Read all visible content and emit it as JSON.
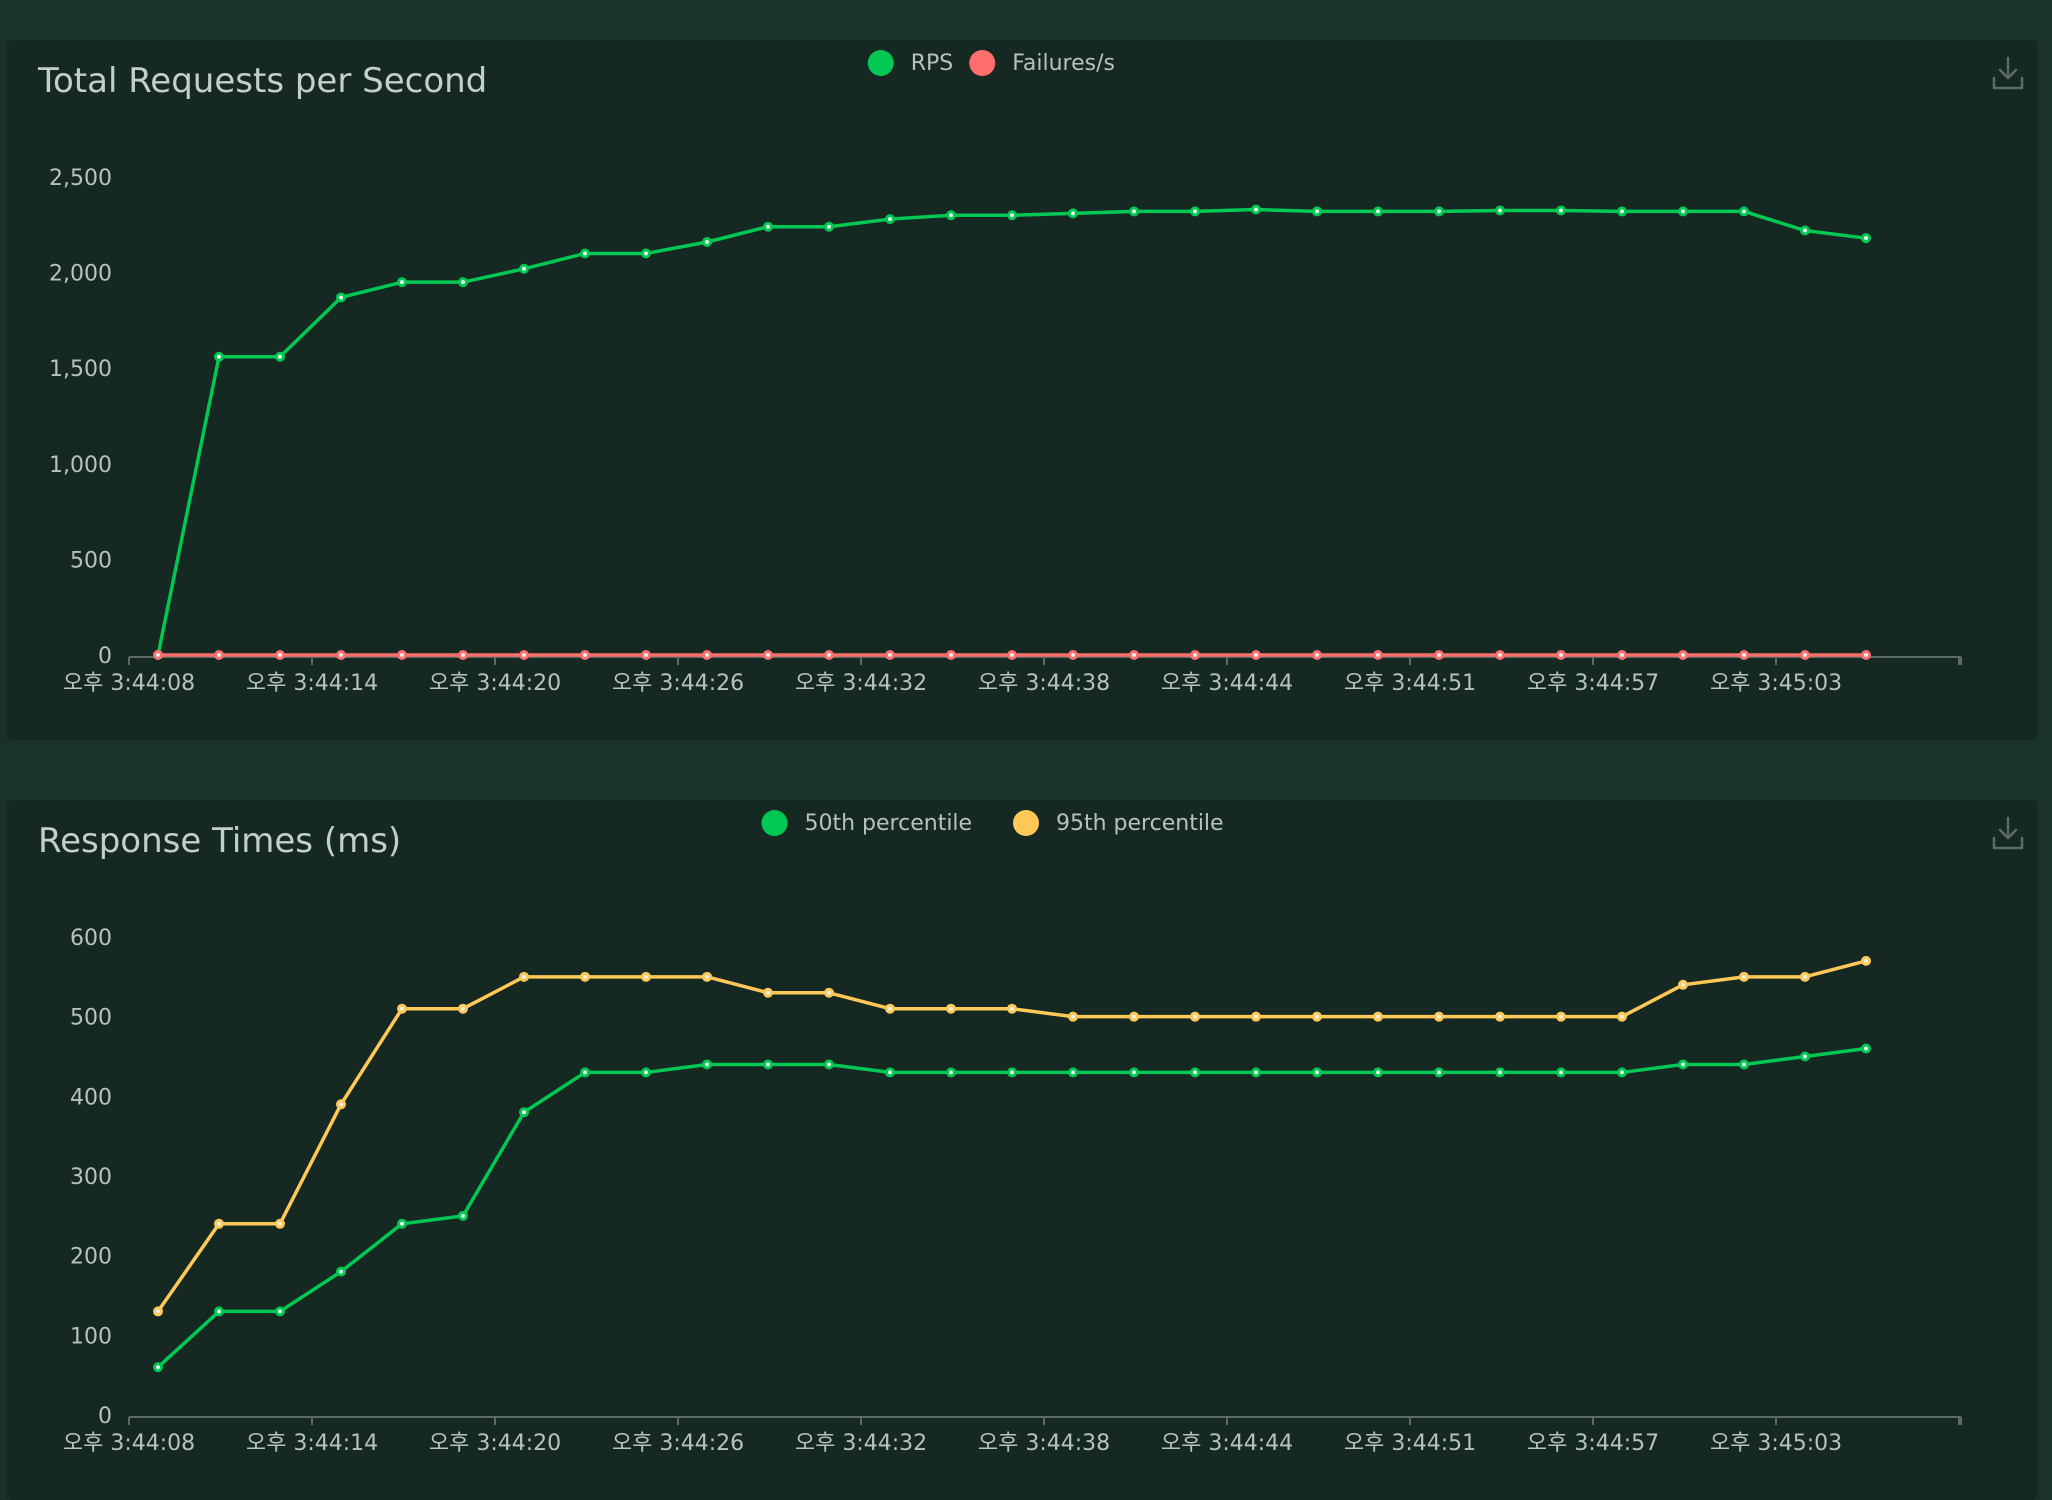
{
  "chart_data": [
    {
      "type": "line",
      "title": "Total Requests per Second",
      "x": [
        "오후 3:44:08",
        "오후 3:44:10",
        "오후 3:44:12",
        "오후 3:44:14",
        "오후 3:44:16",
        "오후 3:44:18",
        "오후 3:44:20",
        "오후 3:44:22",
        "오후 3:44:24",
        "오후 3:44:26",
        "오후 3:44:28",
        "오후 3:44:30",
        "오후 3:44:32",
        "오후 3:44:34",
        "오후 3:44:36",
        "오후 3:44:38",
        "오후 3:44:40",
        "오후 3:44:42",
        "오후 3:44:44",
        "오후 3:44:46",
        "오후 3:44:49",
        "오후 3:44:51",
        "오후 3:44:53",
        "오후 3:44:55",
        "오후 3:44:57",
        "오후 3:44:59",
        "오후 3:45:01",
        "오후 3:45:03",
        "오후 3:45:05"
      ],
      "xticks": [
        "오후 3:44:08",
        "오후 3:44:14",
        "오후 3:44:20",
        "오후 3:44:26",
        "오후 3:44:32",
        "오후 3:44:38",
        "오후 3:44:44",
        "오후 3:44:51",
        "오후 3:44:57",
        "오후 3:45:03"
      ],
      "yticks": [
        "0",
        "500",
        "1,000",
        "1,500",
        "2,000",
        "2,500"
      ],
      "ylim": [
        0,
        2700
      ],
      "grid": false,
      "legend": "top-center",
      "series": [
        {
          "name": "RPS",
          "color": "#00c853",
          "values": [
            0,
            1560,
            1560,
            1870,
            1950,
            1950,
            2020,
            2100,
            2100,
            2160,
            2240,
            2240,
            2280,
            2300,
            2300,
            2310,
            2320,
            2320,
            2330,
            2320,
            2320,
            2320,
            2325,
            2325,
            2320,
            2320,
            2320,
            2220,
            2180
          ]
        },
        {
          "name": "Failures/s",
          "color": "#ff6d6d",
          "values": [
            0,
            0,
            0,
            0,
            0,
            0,
            0,
            0,
            0,
            0,
            0,
            0,
            0,
            0,
            0,
            0,
            0,
            0,
            0,
            0,
            0,
            0,
            0,
            0,
            0,
            0,
            0,
            0,
            0
          ]
        }
      ]
    },
    {
      "type": "line",
      "title": "Response Times (ms)",
      "x": [
        "오후 3:44:08",
        "오후 3:44:10",
        "오후 3:44:12",
        "오후 3:44:14",
        "오후 3:44:16",
        "오후 3:44:18",
        "오후 3:44:20",
        "오후 3:44:22",
        "오후 3:44:24",
        "오후 3:44:26",
        "오후 3:44:28",
        "오후 3:44:30",
        "오후 3:44:32",
        "오후 3:44:34",
        "오후 3:44:36",
        "오후 3:44:38",
        "오후 3:44:40",
        "오후 3:44:42",
        "오후 3:44:44",
        "오후 3:44:46",
        "오후 3:44:49",
        "오후 3:44:51",
        "오후 3:44:53",
        "오후 3:44:55",
        "오후 3:44:57",
        "오후 3:44:59",
        "오후 3:45:01",
        "오후 3:45:03",
        "오후 3:45:05"
      ],
      "xticks": [
        "오후 3:44:08",
        "오후 3:44:14",
        "오후 3:44:20",
        "오후 3:44:26",
        "오후 3:44:32",
        "오후 3:44:38",
        "오후 3:44:44",
        "오후 3:44:51",
        "오후 3:44:57",
        "오후 3:45:03"
      ],
      "yticks": [
        "0",
        "100",
        "200",
        "300",
        "400",
        "500",
        "600"
      ],
      "ylim": [
        0,
        600
      ],
      "grid": false,
      "legend": "top-center",
      "series": [
        {
          "name": "50th percentile",
          "color": "#00c853",
          "values": [
            60,
            130,
            130,
            180,
            240,
            250,
            380,
            430,
            430,
            440,
            440,
            440,
            430,
            430,
            430,
            430,
            430,
            430,
            430,
            430,
            430,
            430,
            430,
            430,
            430,
            440,
            440,
            450,
            460
          ]
        },
        {
          "name": "95th percentile",
          "color": "#ffc857",
          "values": [
            130,
            240,
            240,
            390,
            510,
            510,
            550,
            550,
            550,
            550,
            530,
            530,
            510,
            510,
            510,
            500,
            500,
            500,
            500,
            500,
            500,
            500,
            500,
            500,
            500,
            540,
            550,
            550,
            570
          ]
        }
      ]
    }
  ]
}
